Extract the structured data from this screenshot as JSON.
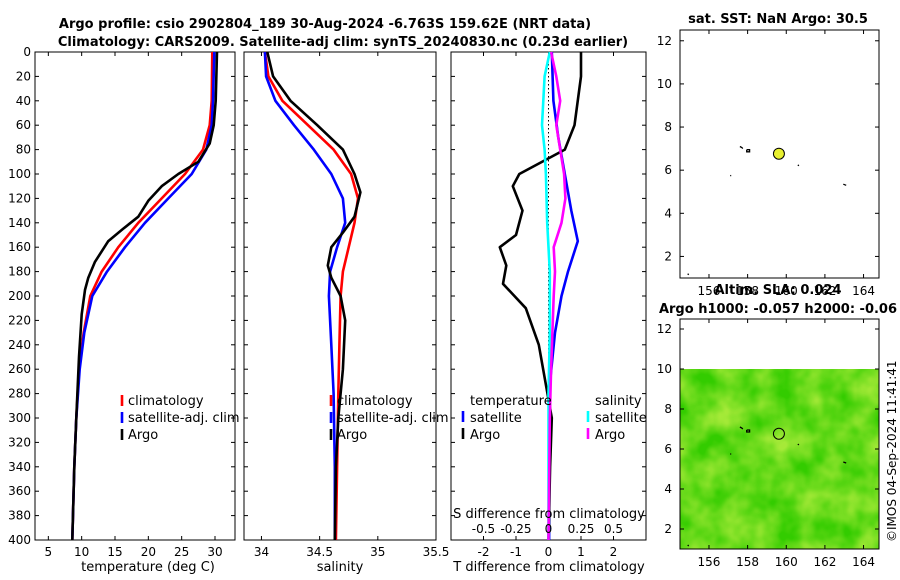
{
  "title": {
    "line1": "Argo profile: csio 2902804_189 30-Aug-2024 -6.763S 159.62E (NRT data)",
    "line2": "Climatology: CARS2009. Satellite-adj clim: synTS_20240830.nc (0.23d earlier)"
  },
  "watermark": "©IMOS 04-Sep-2024 11:41:41",
  "colors": {
    "climatology": "#ff0000",
    "satellite": "#0000ff",
    "argo": "#000000",
    "sal_satellite": "#00ffff",
    "sal_argo": "#ff00ff",
    "sla_field": "#33cc00"
  },
  "chart_data": [
    {
      "type": "line",
      "title": "",
      "xlabel": "temperature (deg C)",
      "ylabel": "",
      "xlim": [
        3,
        33
      ],
      "ylim": [
        400,
        0
      ],
      "xticks": [
        5,
        10,
        15,
        20,
        25,
        30
      ],
      "yticks": [
        0,
        20,
        40,
        60,
        80,
        100,
        120,
        140,
        160,
        180,
        200,
        220,
        240,
        260,
        280,
        300,
        320,
        340,
        360,
        380,
        400
      ],
      "legend": [
        "climatology",
        "satellite-adj. clim",
        "Argo"
      ],
      "series": [
        {
          "name": "climatology",
          "color": "#ff0000",
          "points": [
            [
              29.6,
              0
            ],
            [
              29.5,
              40
            ],
            [
              29.2,
              60
            ],
            [
              28.2,
              80
            ],
            [
              25.5,
              100
            ],
            [
              22,
              120
            ],
            [
              18.5,
              140
            ],
            [
              15.5,
              160
            ],
            [
              13,
              180
            ],
            [
              11.3,
              200
            ],
            [
              10.3,
              230
            ],
            [
              9.6,
              260
            ],
            [
              9.2,
              300
            ],
            [
              8.9,
              340
            ],
            [
              8.6,
              400
            ]
          ]
        },
        {
          "name": "satellite-adj. clim",
          "color": "#0000ff",
          "points": [
            [
              29.9,
              0
            ],
            [
              29.7,
              40
            ],
            [
              29.5,
              60
            ],
            [
              28.7,
              80
            ],
            [
              26.5,
              100
            ],
            [
              23,
              120
            ],
            [
              19.5,
              140
            ],
            [
              16.5,
              160
            ],
            [
              13.8,
              180
            ],
            [
              11.6,
              200
            ],
            [
              10.4,
              230
            ],
            [
              9.7,
              260
            ],
            [
              9.2,
              300
            ],
            [
              8.9,
              340
            ],
            [
              8.6,
              400
            ]
          ]
        },
        {
          "name": "Argo",
          "color": "#000000",
          "points": [
            [
              30.3,
              0
            ],
            [
              30.1,
              40
            ],
            [
              29.8,
              60
            ],
            [
              29.2,
              75
            ],
            [
              27.5,
              90
            ],
            [
              24.5,
              100
            ],
            [
              22,
              110
            ],
            [
              20,
              122
            ],
            [
              18.5,
              135
            ],
            [
              16.2,
              145
            ],
            [
              14,
              155
            ],
            [
              12,
              172
            ],
            [
              11,
              185
            ],
            [
              10.5,
              195
            ],
            [
              10,
              215
            ],
            [
              9.6,
              250
            ],
            [
              9.2,
              300
            ],
            [
              8.9,
              340
            ],
            [
              8.6,
              400
            ]
          ]
        }
      ]
    },
    {
      "type": "line",
      "xlabel": "salinity",
      "xlim": [
        33.85,
        35.5
      ],
      "ylim": [
        400,
        0
      ],
      "xticks": [
        34,
        34.5,
        35,
        35.5
      ],
      "legend": [
        "climatology",
        "satellite-adj. clim",
        "Argo"
      ],
      "series": [
        {
          "name": "climatology",
          "color": "#ff0000",
          "points": [
            [
              34.03,
              0
            ],
            [
              34.06,
              20
            ],
            [
              34.18,
              40
            ],
            [
              34.4,
              60
            ],
            [
              34.62,
              80
            ],
            [
              34.77,
              100
            ],
            [
              34.83,
              120
            ],
            [
              34.8,
              140
            ],
            [
              34.75,
              160
            ],
            [
              34.7,
              180
            ],
            [
              34.68,
              200
            ],
            [
              34.67,
              240
            ],
            [
              34.66,
              280
            ],
            [
              34.65,
              340
            ],
            [
              34.64,
              400
            ]
          ]
        },
        {
          "name": "satellite-adj. clim",
          "color": "#0000ff",
          "points": [
            [
              34.03,
              0
            ],
            [
              34.04,
              20
            ],
            [
              34.12,
              40
            ],
            [
              34.28,
              60
            ],
            [
              34.45,
              80
            ],
            [
              34.6,
              100
            ],
            [
              34.7,
              120
            ],
            [
              34.72,
              140
            ],
            [
              34.65,
              160
            ],
            [
              34.59,
              180
            ],
            [
              34.58,
              200
            ],
            [
              34.6,
              240
            ],
            [
              34.62,
              280
            ],
            [
              34.63,
              340
            ],
            [
              34.63,
              400
            ]
          ]
        },
        {
          "name": "Argo",
          "color": "#000000",
          "points": [
            [
              34.05,
              0
            ],
            [
              34.1,
              20
            ],
            [
              34.25,
              40
            ],
            [
              34.48,
              60
            ],
            [
              34.7,
              80
            ],
            [
              34.8,
              100
            ],
            [
              34.85,
              115
            ],
            [
              34.8,
              135
            ],
            [
              34.7,
              148
            ],
            [
              34.6,
              160
            ],
            [
              34.57,
              175
            ],
            [
              34.6,
              185
            ],
            [
              34.68,
              200
            ],
            [
              34.72,
              220
            ],
            [
              34.7,
              260
            ],
            [
              34.66,
              300
            ],
            [
              34.64,
              340
            ],
            [
              34.63,
              400
            ]
          ]
        }
      ]
    },
    {
      "type": "line",
      "xlabel": "T difference from climatology",
      "xlabel2": "S difference from climatology",
      "xlim": [
        -3,
        3
      ],
      "ylim": [
        400,
        0
      ],
      "xticks": [
        -2,
        -1,
        0,
        1,
        2
      ],
      "xticks_labels": [
        "-2",
        "-1",
        "0",
        "1",
        "2"
      ],
      "xticks2": [
        -0.5,
        -0.25,
        0,
        0.25,
        0.5
      ],
      "xticks2_labels": [
        "-0.5",
        "-0.25",
        "0",
        "0.25",
        "0.5"
      ],
      "legend_titles": [
        "temperature",
        "salinity"
      ],
      "legend_temperature": [
        "satellite",
        "Argo"
      ],
      "legend_salinity": [
        "satellite",
        "Argo"
      ],
      "series": [
        {
          "name": "T satellite",
          "color": "#0000ff",
          "points": [
            [
              0.1,
              0
            ],
            [
              0.15,
              40
            ],
            [
              0.3,
              70
            ],
            [
              0.5,
              100
            ],
            [
              0.7,
              130
            ],
            [
              0.9,
              155
            ],
            [
              0.6,
              180
            ],
            [
              0.4,
              200
            ],
            [
              0.2,
              230
            ],
            [
              0.05,
              270
            ],
            [
              0.03,
              320
            ],
            [
              0.02,
              400
            ]
          ]
        },
        {
          "name": "T Argo",
          "color": "#000000",
          "points": [
            [
              1.0,
              0
            ],
            [
              1.0,
              20
            ],
            [
              0.8,
              60
            ],
            [
              0.5,
              80
            ],
            [
              -0.9,
              100
            ],
            [
              -1.1,
              110
            ],
            [
              -0.8,
              130
            ],
            [
              -1.0,
              150
            ],
            [
              -1.5,
              160
            ],
            [
              -1.3,
              175
            ],
            [
              -1.4,
              190
            ],
            [
              -0.7,
              210
            ],
            [
              -0.3,
              240
            ],
            [
              -0.1,
              270
            ],
            [
              0.1,
              300
            ],
            [
              0.05,
              340
            ],
            [
              0,
              400
            ]
          ]
        },
        {
          "name": "S satellite",
          "color": "#00ffff",
          "points": [
            [
              0.01,
              0
            ],
            [
              -0.03,
              20
            ],
            [
              -0.04,
              40
            ],
            [
              -0.05,
              60
            ],
            [
              -0.03,
              80
            ],
            [
              -0.02,
              100
            ],
            [
              -0.01,
              140
            ],
            [
              0.01,
              180
            ],
            [
              0.01,
              230
            ],
            [
              0,
              280
            ],
            [
              0,
              340
            ],
            [
              0,
              400
            ]
          ]
        },
        {
          "name": "S Argo",
          "color": "#ff00ff",
          "points": [
            [
              0.02,
              0
            ],
            [
              0.06,
              20
            ],
            [
              0.09,
              40
            ],
            [
              0.06,
              60
            ],
            [
              0.09,
              80
            ],
            [
              0.12,
              100
            ],
            [
              0.13,
              120
            ],
            [
              0.1,
              140
            ],
            [
              0.04,
              160
            ],
            [
              0.05,
              180
            ],
            [
              0.04,
              200
            ],
            [
              0.03,
              230
            ],
            [
              0.02,
              260
            ],
            [
              0.01,
              300
            ],
            [
              0,
              400
            ]
          ]
        }
      ]
    },
    {
      "type": "scatter",
      "title": "sat. SST: NaN Argo: 30.5",
      "xlim": [
        154.5,
        164.8
      ],
      "ylim": [
        1,
        12.5
      ],
      "xticks": [
        156,
        158,
        160,
        162,
        164
      ],
      "yticks": [
        2,
        4,
        6,
        8,
        10,
        12
      ],
      "points": [
        {
          "label": "Argo float",
          "x": 159.62,
          "y": 6.763,
          "color": "#e8f030"
        }
      ]
    },
    {
      "type": "heatmap",
      "title": "Altim. SLA: 0.024",
      "subtitle": "Argo h1000: -0.057 h2000: -0.06",
      "xlim": [
        154.5,
        164.8
      ],
      "ylim": [
        1,
        12.5
      ],
      "xticks": [
        156,
        158,
        160,
        162,
        164
      ],
      "yticks": [
        2,
        4,
        6,
        8,
        10,
        12
      ],
      "field_lat_max": 10,
      "points": [
        {
          "label": "Argo float",
          "x": 159.62,
          "y": 6.763
        }
      ]
    }
  ]
}
